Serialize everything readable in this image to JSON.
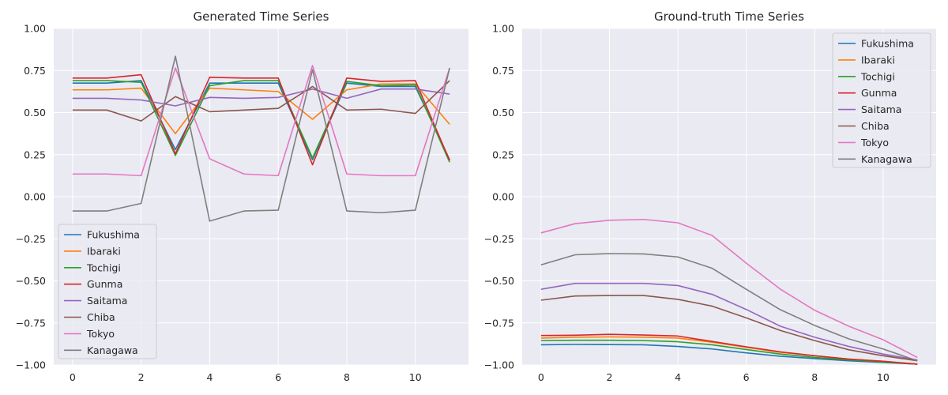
{
  "chart_data": [
    {
      "type": "line",
      "title": "Generated Time Series",
      "xlabel": "",
      "ylabel": "",
      "xlim": [
        -0.55,
        11.55
      ],
      "ylim": [
        -1.0,
        1.0
      ],
      "xticks": [
        0,
        2,
        4,
        6,
        8,
        10
      ],
      "yticks": [
        -1.0,
        -0.75,
        -0.5,
        -0.25,
        0.0,
        0.25,
        0.5,
        0.75,
        1.0
      ],
      "ytick_labels": [
        "−1.00",
        "−0.75",
        "−0.50",
        "−0.25",
        "0.00",
        "0.25",
        "0.50",
        "0.75",
        "1.00"
      ],
      "grid": true,
      "legend_position": "lower-left",
      "x": [
        0,
        1,
        2,
        3,
        4,
        5,
        6,
        7,
        8,
        9,
        10,
        11
      ],
      "series": [
        {
          "name": "Fukushima",
          "color": "#1f77b4",
          "values": [
            0.675,
            0.675,
            0.69,
            0.28,
            0.675,
            0.675,
            0.675,
            0.22,
            0.675,
            0.655,
            0.655,
            0.22
          ]
        },
        {
          "name": "Ibaraki",
          "color": "#ff7f0e",
          "values": [
            0.635,
            0.635,
            0.645,
            0.375,
            0.645,
            0.635,
            0.625,
            0.46,
            0.635,
            0.67,
            0.67,
            0.43
          ]
        },
        {
          "name": "Tochigi",
          "color": "#2ca02c",
          "values": [
            0.69,
            0.69,
            0.68,
            0.245,
            0.66,
            0.69,
            0.69,
            0.23,
            0.685,
            0.66,
            0.665,
            0.205
          ]
        },
        {
          "name": "Gunma",
          "color": "#d62728",
          "values": [
            0.705,
            0.705,
            0.725,
            0.255,
            0.71,
            0.705,
            0.705,
            0.19,
            0.705,
            0.685,
            0.69,
            0.215
          ]
        },
        {
          "name": "Saitama",
          "color": "#9467bd",
          "values": [
            0.585,
            0.585,
            0.575,
            0.54,
            0.59,
            0.585,
            0.59,
            0.64,
            0.585,
            0.64,
            0.64,
            0.61
          ]
        },
        {
          "name": "Chiba",
          "color": "#8c564b",
          "values": [
            0.515,
            0.515,
            0.45,
            0.595,
            0.505,
            0.515,
            0.525,
            0.655,
            0.515,
            0.52,
            0.495,
            0.69
          ]
        },
        {
          "name": "Tokyo",
          "color": "#e377c2",
          "values": [
            0.135,
            0.135,
            0.125,
            0.765,
            0.225,
            0.135,
            0.125,
            0.78,
            0.135,
            0.125,
            0.125,
            0.765
          ]
        },
        {
          "name": "Kanagawa",
          "color": "#7f7f7f",
          "values": [
            -0.085,
            -0.085,
            -0.04,
            0.835,
            -0.145,
            -0.085,
            -0.08,
            0.755,
            -0.085,
            -0.095,
            -0.08,
            0.765
          ]
        }
      ]
    },
    {
      "type": "line",
      "title": "Ground-truth Time Series",
      "xlabel": "",
      "ylabel": "",
      "xlim": [
        -0.55,
        11.55
      ],
      "ylim": [
        -1.0,
        1.0
      ],
      "xticks": [
        0,
        2,
        4,
        6,
        8,
        10
      ],
      "yticks": [
        -1.0,
        -0.75,
        -0.5,
        -0.25,
        0.0,
        0.25,
        0.5,
        0.75,
        1.0
      ],
      "ytick_labels": [
        "−1.00",
        "−0.75",
        "−0.50",
        "−0.25",
        "0.00",
        "0.25",
        "0.50",
        "0.75",
        "1.00"
      ],
      "grid": true,
      "legend_position": "upper-right",
      "x": [
        0,
        1,
        2,
        3,
        4,
        5,
        6,
        7,
        8,
        9,
        10,
        11
      ],
      "series": [
        {
          "name": "Fukushima",
          "color": "#1f77b4",
          "values": [
            -0.88,
            -0.878,
            -0.879,
            -0.88,
            -0.89,
            -0.905,
            -0.928,
            -0.948,
            -0.962,
            -0.975,
            -0.985,
            -0.995
          ]
        },
        {
          "name": "Ibaraki",
          "color": "#ff7f0e",
          "values": [
            -0.84,
            -0.835,
            -0.833,
            -0.835,
            -0.84,
            -0.865,
            -0.895,
            -0.925,
            -0.945,
            -0.965,
            -0.978,
            -0.995
          ]
        },
        {
          "name": "Tochigi",
          "color": "#2ca02c",
          "values": [
            -0.855,
            -0.853,
            -0.853,
            -0.855,
            -0.862,
            -0.88,
            -0.908,
            -0.935,
            -0.955,
            -0.97,
            -0.982,
            -0.995
          ]
        },
        {
          "name": "Gunma",
          "color": "#d62728",
          "values": [
            -0.825,
            -0.823,
            -0.818,
            -0.822,
            -0.828,
            -0.86,
            -0.892,
            -0.922,
            -0.945,
            -0.965,
            -0.978,
            -0.995
          ]
        },
        {
          "name": "Saitama",
          "color": "#9467bd",
          "values": [
            -0.55,
            -0.515,
            -0.515,
            -0.515,
            -0.528,
            -0.58,
            -0.67,
            -0.77,
            -0.835,
            -0.89,
            -0.935,
            -0.97
          ]
        },
        {
          "name": "Chiba",
          "color": "#8c564b",
          "values": [
            -0.615,
            -0.59,
            -0.587,
            -0.587,
            -0.61,
            -0.65,
            -0.72,
            -0.795,
            -0.855,
            -0.91,
            -0.945,
            -0.975
          ]
        },
        {
          "name": "Tokyo",
          "color": "#e377c2",
          "values": [
            -0.215,
            -0.16,
            -0.14,
            -0.135,
            -0.155,
            -0.23,
            -0.395,
            -0.55,
            -0.675,
            -0.77,
            -0.85,
            -0.955
          ]
        },
        {
          "name": "Kanagawa",
          "color": "#7f7f7f",
          "values": [
            -0.405,
            -0.345,
            -0.338,
            -0.34,
            -0.358,
            -0.425,
            -0.55,
            -0.672,
            -0.765,
            -0.845,
            -0.905,
            -0.975
          ]
        }
      ]
    }
  ]
}
